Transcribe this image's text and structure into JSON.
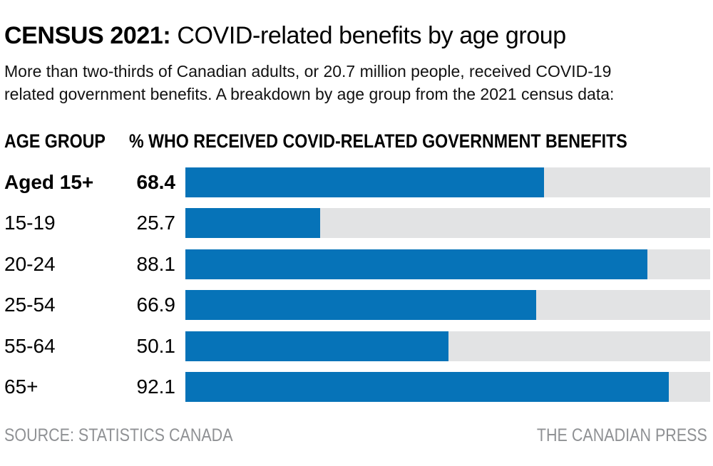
{
  "title": {
    "prefix": "CENSUS 2021:",
    "rest": " COVID-related benefits by age group"
  },
  "subtitle": {
    "line1": "More than two-thirds of Canadian adults, or 20.7 million people, received COVID-19",
    "line2": "related government benefits. A breakdown by age group from the 2021 census data:"
  },
  "column_headers": {
    "age_group": "AGE GROUP",
    "value": "% WHO RECEIVED COVID-RELATED GOVERNMENT BENEFITS"
  },
  "chart_data": {
    "type": "bar",
    "orientation": "horizontal",
    "title": "CENSUS 2021: COVID-related benefits by age group",
    "categories": [
      "Aged 15+",
      "15-19",
      "20-24",
      "25-54",
      "55-64",
      "65+"
    ],
    "values": [
      68.4,
      25.7,
      88.1,
      66.9,
      50.1,
      92.1
    ],
    "xlim": [
      0,
      100
    ],
    "grid": false,
    "legend": "none",
    "emphasized_row_index": 0,
    "bar_color": "#0673B8",
    "track_color": "#E2E3E4"
  },
  "footer": {
    "source": "SOURCE: STATISTICS CANADA",
    "credit": "THE CANADIAN PRESS"
  }
}
